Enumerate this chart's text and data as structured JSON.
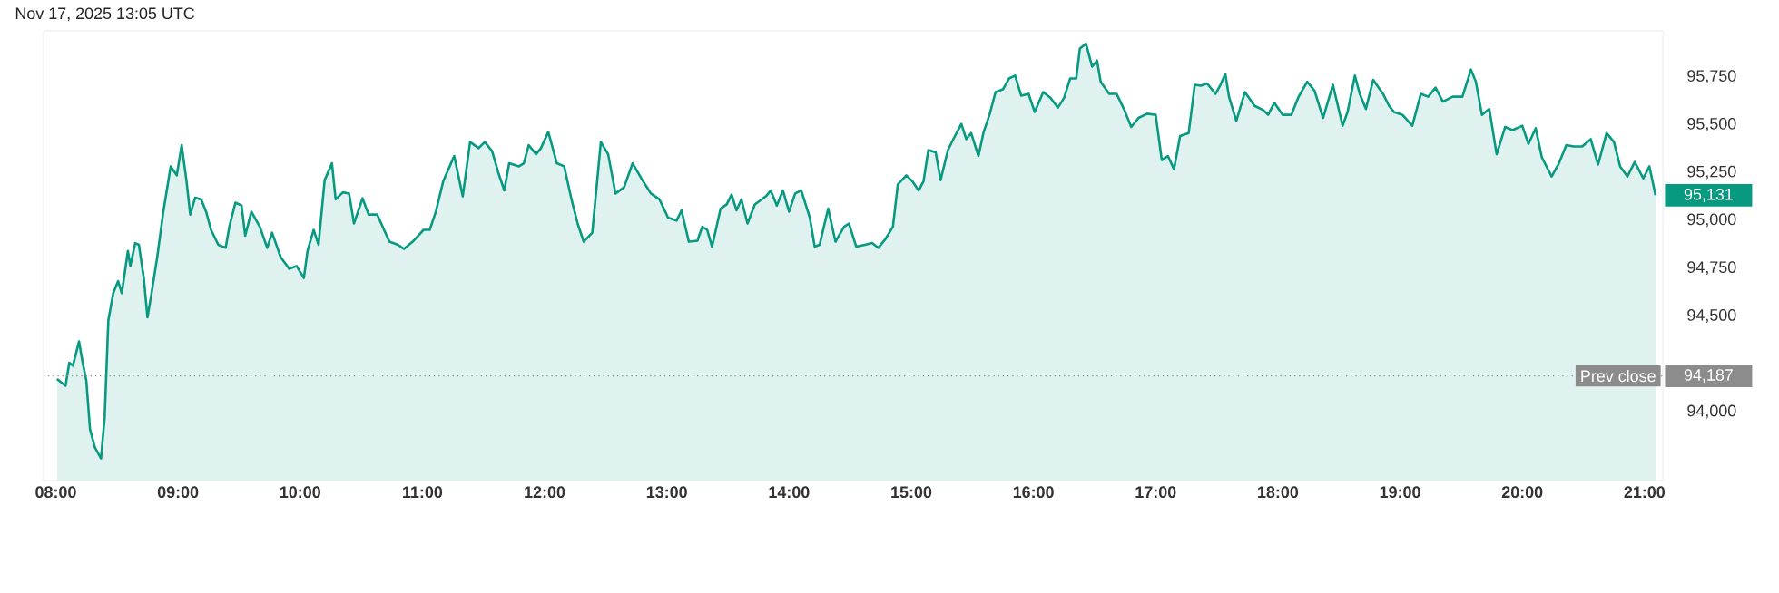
{
  "chart_data": {
    "type": "area",
    "title": "Nov 17, 2025 13:05 UTC",
    "color": "#089981",
    "x": [
      8.01,
      8.08,
      8.11,
      8.14,
      8.19,
      8.22,
      8.25,
      8.28,
      8.32,
      8.37,
      8.4,
      8.43,
      8.47,
      8.51,
      8.54,
      8.59,
      8.61,
      8.65,
      8.68,
      8.72,
      8.75,
      8.78,
      8.83,
      8.88,
      8.94,
      8.99,
      9.03,
      9.07,
      9.1,
      9.14,
      9.19,
      9.23,
      9.27,
      9.33,
      9.39,
      9.42,
      9.47,
      9.52,
      9.55,
      9.6,
      9.67,
      9.73,
      9.77,
      9.84,
      9.91,
      9.97,
      10.03,
      10.06,
      10.11,
      10.15,
      10.2,
      10.26,
      10.29,
      10.35,
      10.4,
      10.44,
      10.51,
      10.56,
      10.63,
      10.73,
      10.8,
      10.85,
      10.92,
      11.01,
      11.06,
      11.11,
      11.17,
      11.26,
      11.33,
      11.39,
      11.46,
      11.51,
      11.57,
      11.62,
      11.67,
      11.71,
      11.79,
      11.83,
      11.87,
      11.93,
      11.97,
      12.03,
      12.1,
      12.16,
      12.22,
      12.27,
      12.32,
      12.39,
      12.46,
      12.52,
      12.58,
      12.65,
      12.72,
      12.8,
      12.87,
      12.94,
      13.01,
      13.08,
      13.12,
      13.18,
      13.25,
      13.29,
      13.33,
      13.37,
      13.44,
      13.49,
      13.53,
      13.57,
      13.61,
      13.66,
      13.72,
      13.81,
      13.85,
      13.9,
      13.95,
      14.0,
      14.05,
      14.1,
      14.17,
      14.21,
      14.25,
      14.32,
      14.38,
      14.45,
      14.49,
      14.55,
      14.62,
      14.68,
      14.73,
      14.79,
      14.85,
      14.89,
      14.96,
      15.01,
      15.06,
      15.1,
      15.14,
      15.2,
      15.24,
      15.3,
      15.35,
      15.41,
      15.45,
      15.49,
      15.55,
      15.59,
      15.64,
      15.69,
      15.75,
      15.8,
      15.85,
      15.9,
      15.96,
      16.01,
      16.08,
      16.14,
      16.2,
      16.25,
      16.3,
      16.35,
      16.38,
      16.43,
      16.48,
      16.52,
      16.55,
      16.62,
      16.68,
      16.74,
      16.8,
      16.86,
      16.93,
      17.0,
      17.05,
      17.1,
      17.15,
      17.2,
      17.27,
      17.32,
      17.37,
      17.42,
      17.49,
      17.53,
      17.57,
      17.6,
      17.66,
      17.73,
      17.81,
      17.88,
      17.92,
      17.97,
      18.04,
      18.11,
      18.17,
      18.24,
      18.3,
      18.37,
      18.45,
      18.53,
      18.57,
      18.63,
      18.67,
      18.72,
      18.78,
      18.86,
      18.91,
      18.95,
      19.02,
      19.1,
      19.17,
      19.23,
      19.29,
      19.35,
      19.43,
      19.51,
      19.58,
      19.62,
      19.67,
      19.73,
      19.79,
      19.86,
      19.92,
      20.0,
      20.05,
      20.11,
      20.16,
      20.24,
      20.3,
      20.36,
      20.42,
      20.49,
      20.56,
      20.62,
      20.69,
      20.75,
      20.8,
      20.86,
      20.92,
      20.99,
      21.04,
      21.09
    ],
    "values": [
      94171,
      94135,
      94256,
      94240,
      94367,
      94256,
      94161,
      93908,
      93813,
      93756,
      93972,
      94477,
      94619,
      94682,
      94619,
      94840,
      94761,
      94881,
      94872,
      94698,
      94493,
      94604,
      94808,
      95045,
      95282,
      95235,
      95393,
      95203,
      95030,
      95118,
      95109,
      95045,
      94950,
      94872,
      94856,
      94966,
      95092,
      95077,
      94919,
      95045,
      94966,
      94856,
      94935,
      94808,
      94746,
      94761,
      94698,
      94840,
      94950,
      94872,
      95210,
      95298,
      95109,
      95146,
      95140,
      94983,
      95115,
      95030,
      95030,
      94888,
      94872,
      94850,
      94888,
      94950,
      94950,
      95045,
      95203,
      95336,
      95125,
      95409,
      95377,
      95409,
      95362,
      95251,
      95156,
      95298,
      95282,
      95298,
      95393,
      95345,
      95377,
      95462,
      95298,
      95282,
      95109,
      94983,
      94888,
      94935,
      95409,
      95345,
      95140,
      95172,
      95298,
      95210,
      95140,
      95109,
      95014,
      94998,
      95052,
      94888,
      94893,
      94966,
      94950,
      94862,
      95061,
      95083,
      95134,
      95052,
      95109,
      94983,
      95083,
      95125,
      95156,
      95077,
      95156,
      95045,
      95140,
      95156,
      95014,
      94862,
      94872,
      95061,
      94888,
      94966,
      94983,
      94862,
      94872,
      94881,
      94856,
      94903,
      94966,
      95187,
      95235,
      95203,
      95156,
      95203,
      95367,
      95355,
      95210,
      95367,
      95431,
      95504,
      95424,
      95456,
      95336,
      95456,
      95551,
      95670,
      95684,
      95741,
      95756,
      95651,
      95661,
      95566,
      95670,
      95639,
      95589,
      95639,
      95741,
      95741,
      95898,
      95923,
      95803,
      95835,
      95724,
      95661,
      95661,
      95582,
      95488,
      95535,
      95557,
      95551,
      95314,
      95336,
      95267,
      95440,
      95456,
      95708,
      95703,
      95715,
      95661,
      95708,
      95765,
      95646,
      95519,
      95670,
      95598,
      95576,
      95551,
      95614,
      95551,
      95551,
      95646,
      95724,
      95677,
      95535,
      95708,
      95494,
      95566,
      95756,
      95661,
      95582,
      95734,
      95661,
      95598,
      95566,
      95551,
      95494,
      95661,
      95646,
      95693,
      95620,
      95646,
      95646,
      95788,
      95724,
      95551,
      95582,
      95345,
      95488,
      95471,
      95494,
      95399,
      95481,
      95329,
      95229,
      95298,
      95393,
      95386,
      95386,
      95424,
      95291,
      95456,
      95409,
      95282,
      95229,
      95305,
      95219,
      95282,
      95131
    ],
    "xlim": [
      7.9,
      21.15
    ],
    "ylim": [
      93640,
      95990
    ],
    "xticks": [
      {
        "value": 8,
        "label": "08:00"
      },
      {
        "value": 9,
        "label": "09:00"
      },
      {
        "value": 10,
        "label": "10:00"
      },
      {
        "value": 11,
        "label": "11:00"
      },
      {
        "value": 12,
        "label": "12:00"
      },
      {
        "value": 13,
        "label": "13:00"
      },
      {
        "value": 14,
        "label": "14:00"
      },
      {
        "value": 15,
        "label": "15:00"
      },
      {
        "value": 16,
        "label": "16:00"
      },
      {
        "value": 17,
        "label": "17:00"
      },
      {
        "value": 18,
        "label": "18:00"
      },
      {
        "value": 19,
        "label": "19:00"
      },
      {
        "value": 20,
        "label": "20:00"
      },
      {
        "value": 21,
        "label": "21:00"
      }
    ],
    "yticks": [
      {
        "value": 94000,
        "label": "94,000"
      },
      {
        "value": 94500,
        "label": "94,500"
      },
      {
        "value": 94750,
        "label": "94,750"
      },
      {
        "value": 95000,
        "label": "95,000"
      },
      {
        "value": 95250,
        "label": "95,250"
      },
      {
        "value": 95500,
        "label": "95,500"
      },
      {
        "value": 95750,
        "label": "95,750"
      }
    ],
    "ref_lines": [
      {
        "axis": "y",
        "value": 94187,
        "label": "Prev close",
        "color": "#8c8c8c",
        "line_style": "dotted"
      }
    ],
    "value_labels": [
      null,
      null,
      null,
      null,
      null,
      null,
      null,
      null,
      null,
      null,
      null,
      null,
      null,
      null,
      null,
      null,
      null,
      null,
      null,
      null,
      null,
      null,
      null,
      null,
      null,
      null,
      null,
      null,
      null,
      null,
      null,
      null,
      null,
      null,
      null,
      null,
      null,
      null,
      null,
      null,
      null,
      null,
      null,
      null,
      null,
      null,
      null,
      null,
      null,
      null,
      null,
      null,
      null,
      null,
      null,
      null,
      null,
      null,
      null,
      null,
      null,
      null,
      null,
      null,
      null,
      null,
      null,
      null,
      null,
      null,
      null,
      null,
      null,
      null,
      null,
      null,
      null,
      null,
      null,
      null,
      null,
      null,
      null,
      null,
      null,
      null,
      null,
      null,
      null,
      null,
      null,
      null,
      null,
      null,
      null,
      null,
      null,
      null,
      null,
      null,
      null,
      null,
      null,
      null,
      null,
      null,
      null,
      null,
      null,
      null,
      null,
      null,
      null,
      null,
      null,
      null,
      null,
      null,
      null,
      null,
      null,
      null,
      null,
      null,
      null,
      null,
      null,
      null,
      null,
      null,
      null,
      null,
      null,
      null,
      null,
      null,
      null,
      null,
      null,
      null,
      null,
      null,
      null,
      null,
      null,
      null,
      null,
      null,
      null,
      null,
      null,
      null,
      null,
      null,
      null,
      null,
      null,
      null,
      null,
      null,
      null,
      null,
      null,
      null,
      null,
      null,
      null,
      null,
      null,
      null,
      null,
      null,
      null,
      null,
      null,
      null,
      null,
      null,
      null,
      null,
      null,
      null,
      null,
      null,
      null,
      null,
      null,
      null,
      null,
      null,
      null,
      null,
      null,
      null,
      null,
      null,
      null,
      null,
      null,
      null,
      null,
      null,
      null,
      null,
      null,
      null,
      null,
      null,
      null,
      null,
      null,
      null,
      null,
      null,
      null,
      null,
      null,
      null,
      null,
      null,
      null,
      null,
      null,
      null,
      null,
      null,
      null,
      null,
      null,
      null,
      null,
      null,
      null,
      null,
      null,
      null,
      null,
      null,
      null,
      "95,131"
    ],
    "annotations": [
      "94,187"
    ]
  }
}
